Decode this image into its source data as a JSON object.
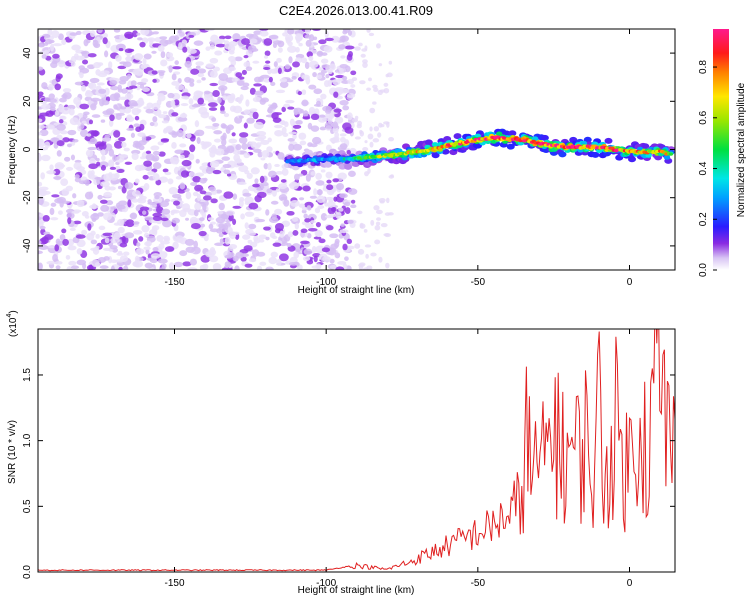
{
  "figure": {
    "title": "C2E4.2026.013.00.41.R09"
  },
  "chart_data": [
    {
      "type": "heatmap",
      "xlabel": "Height of straight line (km)",
      "ylabel": "Frequency (Hz)",
      "xlim": [
        -195,
        15
      ],
      "ylim": [
        -50,
        50
      ],
      "xticks": [
        -150,
        -100,
        -50,
        0
      ],
      "yticks": [
        -40,
        -20,
        0,
        20,
        40
      ],
      "colorbar": {
        "label": "Normalized spectral amplitude",
        "range": [
          0,
          0.95
        ],
        "ticks": [
          0.0,
          0.2,
          0.4,
          0.6,
          0.8
        ],
        "colormap": "rainbow (white-violet-blue-cyan-green-yellow-red-magenta)"
      },
      "noise_region": {
        "x_range": [
          -195,
          -91
        ],
        "freq_range": [
          -50,
          50
        ],
        "amplitude_approx": 0.05
      },
      "sparse_noise_region": {
        "x_range": [
          -91,
          -78
        ],
        "freq_range": [
          -50,
          50
        ]
      },
      "ridge": {
        "description": "frequency centre of the signal band vs height",
        "x": [
          -113,
          -100,
          -92,
          -85,
          -75,
          -65,
          -55,
          -45,
          -35,
          -28,
          -20,
          -10,
          0,
          10,
          14
        ],
        "frequency": [
          -5,
          -4,
          -4,
          -3,
          -2,
          0,
          3,
          5,
          4,
          2,
          1,
          1,
          -1,
          -1,
          -2
        ],
        "peak_amplitude": [
          0.25,
          0.3,
          0.4,
          0.55,
          0.6,
          0.7,
          0.8,
          0.85,
          0.9,
          0.85,
          0.9,
          0.85,
          0.75,
          0.7,
          0.6
        ]
      }
    },
    {
      "type": "line",
      "xlabel": "Height of straight line (km)",
      "ylabel": "SNR (10 * v/v)",
      "y_multiplier_label": "(x10",
      "y_multiplier_exp": "4",
      "xlim": [
        -195,
        15
      ],
      "ylim": [
        0,
        1.85
      ],
      "xticks": [
        -150,
        -100,
        -50,
        0
      ],
      "yticks": [
        0.0,
        0.5,
        1.0,
        1.5
      ],
      "series_color": "#e02020",
      "series": [
        {
          "x": [
            -195,
            -150,
            -100,
            -95,
            -90,
            -80,
            -72,
            -68,
            -65,
            -60,
            -55,
            -50,
            -45,
            -40,
            -36,
            -34,
            -32,
            -30,
            -28,
            -25,
            -22,
            -20,
            -18,
            -15,
            -12,
            -10,
            -8,
            -5,
            -2,
            0,
            3,
            6,
            9,
            12,
            15
          ],
          "values": [
            0.01,
            0.01,
            0.01,
            0.03,
            0.05,
            0.02,
            0.08,
            0.12,
            0.15,
            0.2,
            0.25,
            0.3,
            0.35,
            0.45,
            0.6,
            1.3,
            0.75,
            1.05,
            0.9,
            1.45,
            1.0,
            1.15,
            1.0,
            1.25,
            0.85,
            1.45,
            0.8,
            1.35,
            1.0,
            0.95,
            1.55,
            1.0,
            1.85,
            1.35,
            1.0
          ]
        }
      ]
    }
  ]
}
